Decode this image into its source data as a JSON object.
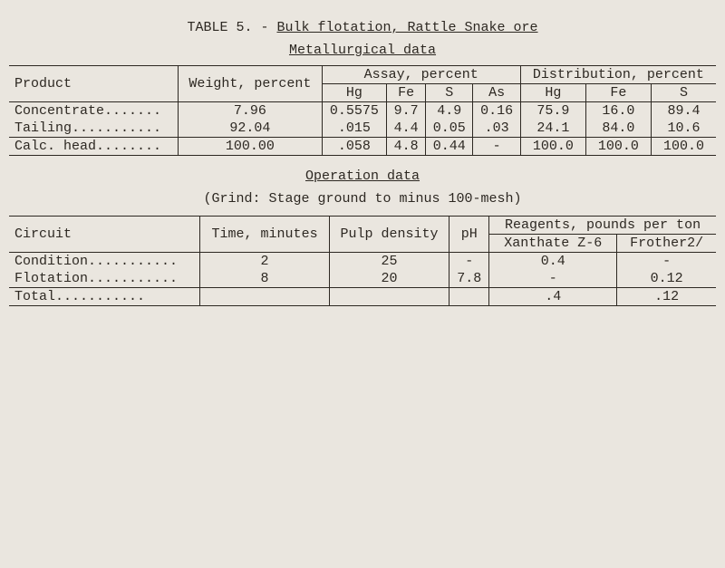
{
  "title_prefix": "TABLE 5. - ",
  "title_main": "Bulk flotation, Rattle Snake ore",
  "sub1": "Metallurgical data",
  "t1": {
    "h_product": "Product",
    "h_weight": "Weight, percent",
    "h_assay": "Assay, percent",
    "h_dist": "Distribution, percent",
    "cols_assay": [
      "Hg",
      "Fe",
      "S",
      "As"
    ],
    "cols_dist": [
      "Hg",
      "Fe",
      "S"
    ],
    "rows": [
      {
        "p": "Concentrate.......",
        "w": "7.96",
        "a": [
          "0.5575",
          "9.7",
          "4.9",
          "0.16"
        ],
        "d": [
          "75.9",
          "16.0",
          "89.4"
        ]
      },
      {
        "p": "Tailing...........",
        "w": "92.04",
        "a": [
          ".015",
          "4.4",
          "0.05",
          ".03"
        ],
        "d": [
          "24.1",
          "84.0",
          "10.6"
        ]
      }
    ],
    "total": {
      "p": "Calc. head........",
      "w": "100.00",
      "a": [
        ".058",
        "4.8",
        "0.44",
        "-"
      ],
      "d": [
        "100.0",
        "100.0",
        "100.0"
      ]
    }
  },
  "sub2": "Operation data",
  "grind_note": "(Grind:  Stage ground to minus 100-mesh)",
  "t2": {
    "h_circuit": "Circuit",
    "h_time": "Time, minutes",
    "h_pulp": "Pulp density",
    "h_ph": "pH",
    "h_reagents": "Reagents, pounds per ton",
    "cols_reagents": [
      "Xanthate Z-6",
      "Frother2/"
    ],
    "rows": [
      {
        "c": "Condition...........",
        "t": "2",
        "pd": "25",
        "ph": "-",
        "r": [
          "0.4",
          "-"
        ]
      },
      {
        "c": "Flotation...........",
        "t": "8",
        "pd": "20",
        "ph": "7.8",
        "r": [
          "-",
          "0.12"
        ]
      }
    ],
    "total": {
      "c": "    Total...........",
      "t": "",
      "pd": "",
      "ph": "",
      "r": [
        ".4",
        ".12"
      ]
    }
  }
}
